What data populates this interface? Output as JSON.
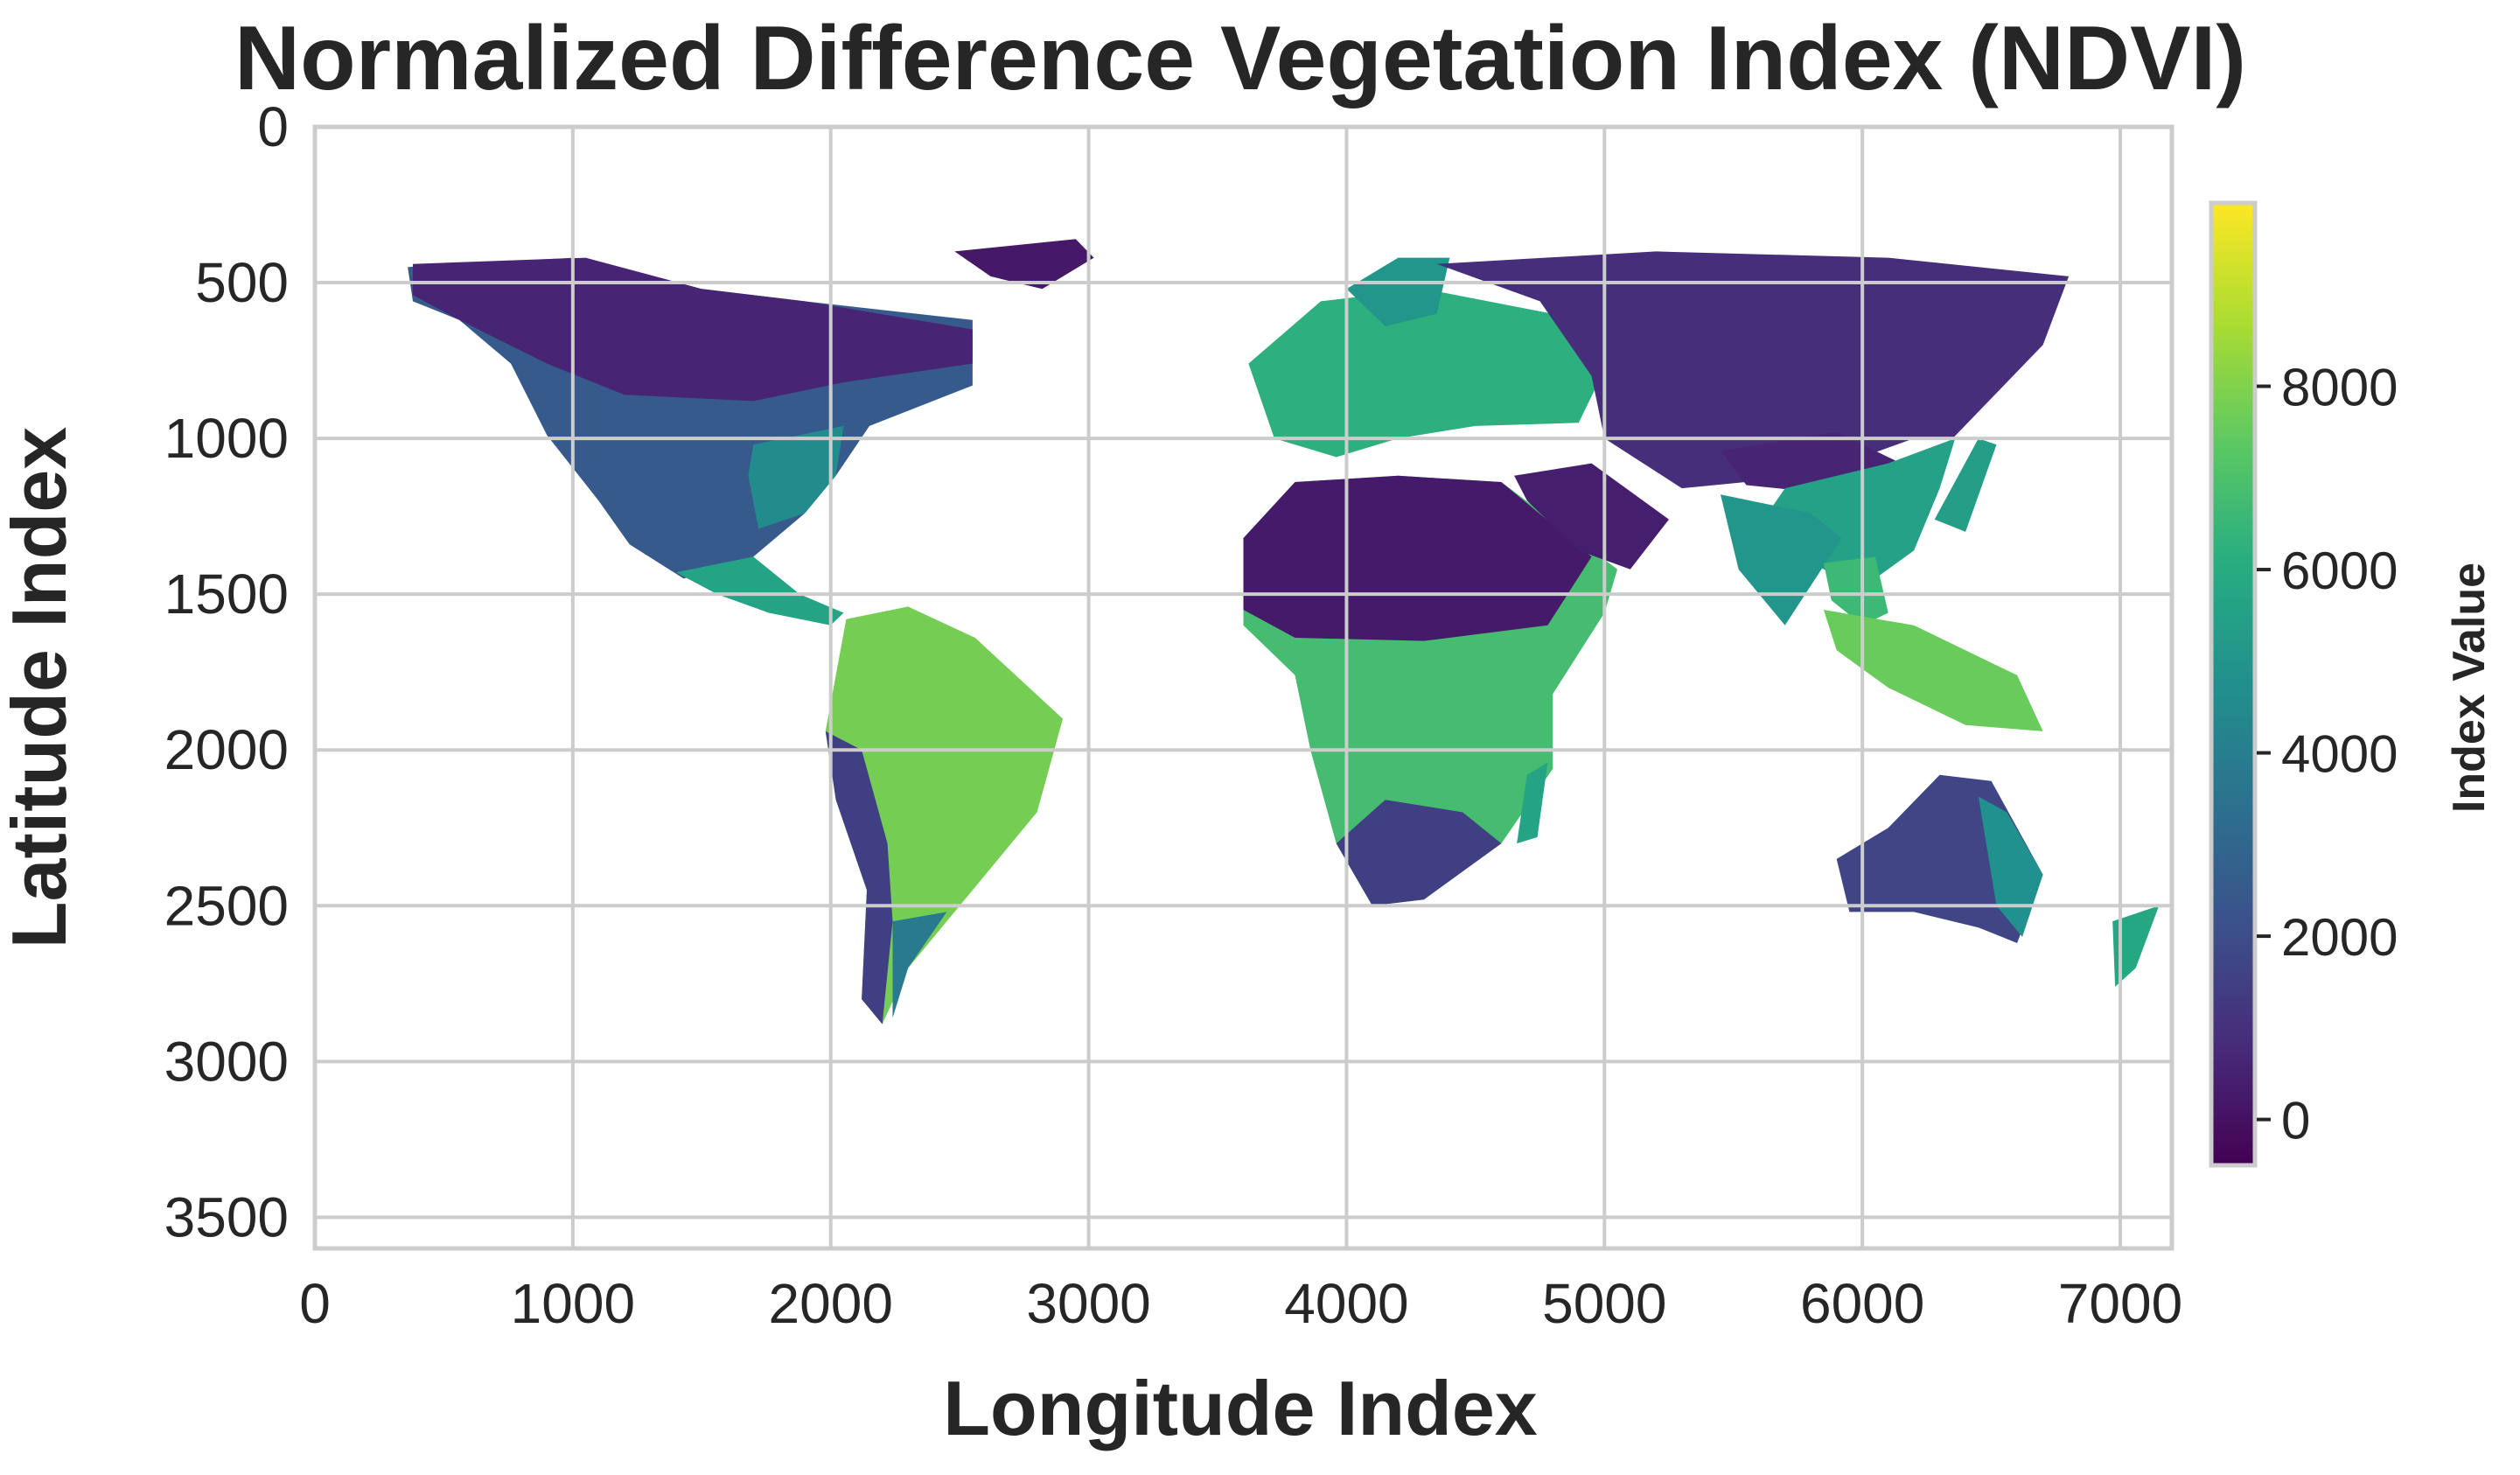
{
  "chart_data": {
    "type": "heatmap",
    "title": "Normalized Difference Vegetation Index (NDVI)",
    "xlabel": "Longitude Index",
    "ylabel": "Latitude Index",
    "xlim": [
      0,
      7200
    ],
    "ylim": [
      3600,
      0
    ],
    "xticks": [
      0,
      1000,
      2000,
      3000,
      4000,
      5000,
      6000,
      7000
    ],
    "yticks": [
      0,
      500,
      1000,
      1500,
      2000,
      2500,
      3000,
      3500
    ],
    "grid": true,
    "colormap": "viridis",
    "colorbar": {
      "label": "Index Value",
      "range": [
        -500,
        10000
      ],
      "ticks": [
        0,
        2000,
        4000,
        6000,
        8000
      ],
      "colors": [
        "#440154",
        "#472c7a",
        "#3b518b",
        "#2c718e",
        "#21908d",
        "#27ad81",
        "#5cc863",
        "#aadc32",
        "#fde725"
      ]
    },
    "regions": [
      {
        "name": "North America",
        "value": 2500,
        "points": [
          [
            360,
            450
          ],
          [
            1000,
            420
          ],
          [
            1300,
            500
          ],
          [
            1900,
            560
          ],
          [
            2550,
            620
          ],
          [
            2550,
            830
          ],
          [
            2150,
            960
          ],
          [
            2020,
            1120
          ],
          [
            1900,
            1240
          ],
          [
            1700,
            1380
          ],
          [
            1430,
            1450
          ],
          [
            1220,
            1340
          ],
          [
            1100,
            1200
          ],
          [
            900,
            990
          ],
          [
            760,
            760
          ],
          [
            560,
            620
          ],
          [
            380,
            560
          ]
        ]
      },
      {
        "name": "Canada Boreal",
        "value": 600,
        "points": [
          [
            380,
            440
          ],
          [
            1050,
            420
          ],
          [
            1500,
            520
          ],
          [
            1900,
            560
          ],
          [
            2550,
            650
          ],
          [
            2550,
            760
          ],
          [
            2050,
            820
          ],
          [
            1700,
            880
          ],
          [
            1200,
            860
          ],
          [
            900,
            760
          ],
          [
            560,
            620
          ],
          [
            380,
            540
          ]
        ]
      },
      {
        "name": "Southeast US",
        "value": 4600,
        "points": [
          [
            1700,
            1020
          ],
          [
            2050,
            960
          ],
          [
            2020,
            1120
          ],
          [
            1900,
            1240
          ],
          [
            1720,
            1290
          ],
          [
            1680,
            1120
          ]
        ]
      },
      {
        "name": "Central America",
        "value": 5600,
        "points": [
          [
            1400,
            1430
          ],
          [
            1700,
            1380
          ],
          [
            1880,
            1500
          ],
          [
            2050,
            1560
          ],
          [
            2000,
            1600
          ],
          [
            1760,
            1560
          ],
          [
            1560,
            1500
          ]
        ]
      },
      {
        "name": "Greenland",
        "value": 200,
        "points": [
          [
            2480,
            400
          ],
          [
            2950,
            360
          ],
          [
            3020,
            420
          ],
          [
            2820,
            520
          ],
          [
            2620,
            480
          ]
        ]
      },
      {
        "name": "South America",
        "value": 7800,
        "points": [
          [
            2060,
            1580
          ],
          [
            2300,
            1540
          ],
          [
            2560,
            1640
          ],
          [
            2900,
            1900
          ],
          [
            2800,
            2200
          ],
          [
            2500,
            2500
          ],
          [
            2300,
            2700
          ],
          [
            2200,
            2880
          ],
          [
            2120,
            2800
          ],
          [
            2140,
            2450
          ],
          [
            2020,
            2160
          ],
          [
            1980,
            1940
          ]
        ]
      },
      {
        "name": "South America Dry West",
        "value": 1500,
        "points": [
          [
            1980,
            1940
          ],
          [
            2120,
            2000
          ],
          [
            2220,
            2300
          ],
          [
            2240,
            2550
          ],
          [
            2200,
            2880
          ],
          [
            2120,
            2800
          ],
          [
            2140,
            2450
          ],
          [
            2020,
            2160
          ]
        ]
      },
      {
        "name": "Patagonia",
        "value": 3800,
        "points": [
          [
            2240,
            2550
          ],
          [
            2450,
            2520
          ],
          [
            2300,
            2700
          ],
          [
            2240,
            2860
          ]
        ]
      },
      {
        "name": "Europe",
        "value": 6200,
        "points": [
          [
            3720,
            1000
          ],
          [
            3620,
            760
          ],
          [
            3900,
            560
          ],
          [
            4300,
            520
          ],
          [
            4800,
            600
          ],
          [
            5000,
            780
          ],
          [
            4900,
            950
          ],
          [
            4500,
            960
          ],
          [
            4200,
            1000
          ],
          [
            3960,
            1060
          ]
        ]
      },
      {
        "name": "Scandinavia",
        "value": 5000,
        "points": [
          [
            4000,
            520
          ],
          [
            4200,
            420
          ],
          [
            4400,
            420
          ],
          [
            4350,
            600
          ],
          [
            4150,
            640
          ]
        ]
      },
      {
        "name": "Africa",
        "value": 6800,
        "points": [
          [
            3600,
            1320
          ],
          [
            3800,
            1140
          ],
          [
            4200,
            1120
          ],
          [
            4600,
            1140
          ],
          [
            5050,
            1420
          ],
          [
            5000,
            1560
          ],
          [
            4800,
            1820
          ],
          [
            4800,
            2060
          ],
          [
            4600,
            2300
          ],
          [
            4300,
            2480
          ],
          [
            4100,
            2500
          ],
          [
            3960,
            2300
          ],
          [
            3860,
            2000
          ],
          [
            3800,
            1760
          ],
          [
            3600,
            1600
          ]
        ]
      },
      {
        "name": "Sahara",
        "value": 250,
        "points": [
          [
            3600,
            1320
          ],
          [
            3800,
            1140
          ],
          [
            4200,
            1120
          ],
          [
            4600,
            1140
          ],
          [
            4950,
            1380
          ],
          [
            4780,
            1600
          ],
          [
            4300,
            1650
          ],
          [
            3800,
            1640
          ],
          [
            3600,
            1550
          ]
        ]
      },
      {
        "name": "Southern Africa Dry",
        "value": 1500,
        "points": [
          [
            3960,
            2300
          ],
          [
            4150,
            2160
          ],
          [
            4450,
            2200
          ],
          [
            4600,
            2300
          ],
          [
            4300,
            2480
          ],
          [
            4100,
            2500
          ]
        ]
      },
      {
        "name": "Madagascar",
        "value": 5600,
        "points": [
          [
            4700,
            2080
          ],
          [
            4780,
            2040
          ],
          [
            4740,
            2280
          ],
          [
            4660,
            2300
          ]
        ]
      },
      {
        "name": "Arabia",
        "value": 400,
        "points": [
          [
            4650,
            1120
          ],
          [
            4950,
            1080
          ],
          [
            5250,
            1260
          ],
          [
            5100,
            1420
          ],
          [
            4900,
            1360
          ],
          [
            4700,
            1200
          ]
        ]
      },
      {
        "name": "Russia",
        "value": 900,
        "points": [
          [
            4350,
            440
          ],
          [
            5200,
            400
          ],
          [
            6100,
            420
          ],
          [
            6800,
            480
          ],
          [
            6700,
            700
          ],
          [
            6350,
            1000
          ],
          [
            6200,
            1000
          ],
          [
            5700,
            1080
          ],
          [
            5200,
            1000
          ],
          [
            4950,
            800
          ],
          [
            4750,
            560
          ]
        ]
      },
      {
        "name": "Central Asia",
        "value": 900,
        "points": [
          [
            4950,
            800
          ],
          [
            5700,
            820
          ],
          [
            6200,
            1000
          ],
          [
            5800,
            1120
          ],
          [
            5300,
            1160
          ],
          [
            5000,
            1000
          ]
        ]
      },
      {
        "name": "Tibet",
        "value": 600,
        "points": [
          [
            5450,
            1040
          ],
          [
            5900,
            980
          ],
          [
            6150,
            1080
          ],
          [
            5900,
            1180
          ],
          [
            5550,
            1150
          ]
        ]
      },
      {
        "name": "East Asia",
        "value": 5500,
        "points": [
          [
            5700,
            1160
          ],
          [
            6100,
            1080
          ],
          [
            6360,
            1000
          ],
          [
            6300,
            1160
          ],
          [
            6200,
            1360
          ],
          [
            6000,
            1480
          ],
          [
            5800,
            1400
          ],
          [
            5600,
            1280
          ]
        ]
      },
      {
        "name": "India",
        "value": 5000,
        "points": [
          [
            5450,
            1180
          ],
          [
            5800,
            1240
          ],
          [
            5920,
            1320
          ],
          [
            5700,
            1600
          ],
          [
            5520,
            1420
          ]
        ]
      },
      {
        "name": "Southeast Asia",
        "value": 6600,
        "points": [
          [
            5850,
            1400
          ],
          [
            6050,
            1380
          ],
          [
            6100,
            1560
          ],
          [
            6000,
            1600
          ],
          [
            5880,
            1520
          ]
        ]
      },
      {
        "name": "Indonesia",
        "value": 7600,
        "points": [
          [
            5850,
            1550
          ],
          [
            6200,
            1600
          ],
          [
            6600,
            1760
          ],
          [
            6700,
            1940
          ],
          [
            6400,
            1920
          ],
          [
            6100,
            1800
          ],
          [
            5900,
            1680
          ]
        ]
      },
      {
        "name": "Japan",
        "value": 5400,
        "points": [
          [
            6450,
            1000
          ],
          [
            6520,
            1020
          ],
          [
            6400,
            1300
          ],
          [
            6280,
            1260
          ]
        ]
      },
      {
        "name": "Australia",
        "value": 1700,
        "points": [
          [
            5900,
            2350
          ],
          [
            6100,
            2250
          ],
          [
            6300,
            2080
          ],
          [
            6500,
            2100
          ],
          [
            6700,
            2400
          ],
          [
            6600,
            2620
          ],
          [
            6450,
            2570
          ],
          [
            6200,
            2520
          ],
          [
            5950,
            2520
          ]
        ]
      },
      {
        "name": "Australia East",
        "value": 4800,
        "points": [
          [
            6450,
            2150
          ],
          [
            6560,
            2200
          ],
          [
            6700,
            2400
          ],
          [
            6620,
            2600
          ],
          [
            6520,
            2500
          ]
        ]
      },
      {
        "name": "New Zealand",
        "value": 5800,
        "points": [
          [
            6970,
            2550
          ],
          [
            7150,
            2500
          ],
          [
            7060,
            2700
          ],
          [
            6980,
            2760
          ]
        ]
      }
    ]
  }
}
